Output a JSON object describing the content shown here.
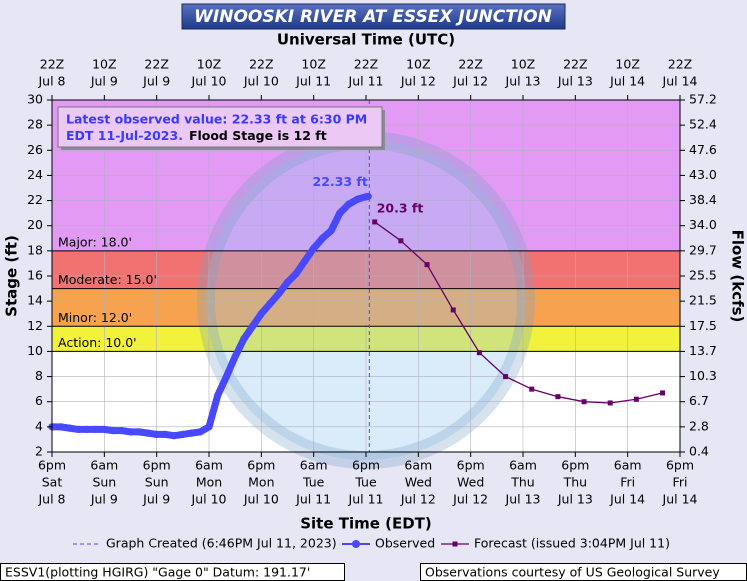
{
  "chart_data": {
    "type": "line",
    "title": "WINOOSKI RIVER AT ESSEX JUNCTION",
    "top_axis_label": "Universal Time (UTC)",
    "x_label": "Site Time (EDT)",
    "y_label": "Stage (ft)",
    "y2_label": "Flow (kcfs)",
    "xlim": [
      "07-08T18:00",
      "07-14T18:00"
    ],
    "xticks": [
      {
        "value": "07-08T18:00",
        "label": [
          "6pm",
          "Sat",
          "Jul 8"
        ]
      },
      {
        "value": "07-09T06:00",
        "label": [
          "6am",
          "Sun",
          "Jul 9"
        ]
      },
      {
        "value": "07-09T18:00",
        "label": [
          "6pm",
          "Sun",
          "Jul 9"
        ]
      },
      {
        "value": "07-10T06:00",
        "label": [
          "6am",
          "Mon",
          "Jul 10"
        ]
      },
      {
        "value": "07-10T18:00",
        "label": [
          "6pm",
          "Mon",
          "Jul 10"
        ]
      },
      {
        "value": "07-11T06:00",
        "label": [
          "6am",
          "Tue",
          "Jul 11"
        ]
      },
      {
        "value": "07-11T18:00",
        "label": [
          "6pm",
          "Tue",
          "Jul 11"
        ]
      },
      {
        "value": "07-12T06:00",
        "label": [
          "6am",
          "Wed",
          "Jul 12"
        ]
      },
      {
        "value": "07-12T18:00",
        "label": [
          "6pm",
          "Wed",
          "Jul 12"
        ]
      },
      {
        "value": "07-13T06:00",
        "label": [
          "6am",
          "Thu",
          "Jul 13"
        ]
      },
      {
        "value": "07-13T18:00",
        "label": [
          "6pm",
          "Thu",
          "Jul 13"
        ]
      },
      {
        "value": "07-14T06:00",
        "label": [
          "6am",
          "Fri",
          "Jul 14"
        ]
      },
      {
        "value": "07-14T18:00",
        "label": [
          "6pm",
          "Fri",
          "Jul 14"
        ]
      }
    ],
    "xticks_top": [
      {
        "value": "07-08T18:00",
        "label": [
          "22Z",
          "Jul 8"
        ]
      },
      {
        "value": "07-09T06:00",
        "label": [
          "10Z",
          "Jul 9"
        ]
      },
      {
        "value": "07-09T18:00",
        "label": [
          "22Z",
          "Jul 9"
        ]
      },
      {
        "value": "07-10T06:00",
        "label": [
          "10Z",
          "Jul 10"
        ]
      },
      {
        "value": "07-10T18:00",
        "label": [
          "22Z",
          "Jul 10"
        ]
      },
      {
        "value": "07-11T06:00",
        "label": [
          "10Z",
          "Jul 11"
        ]
      },
      {
        "value": "07-11T18:00",
        "label": [
          "22Z",
          "Jul 11"
        ]
      },
      {
        "value": "07-12T06:00",
        "label": [
          "10Z",
          "Jul 12"
        ]
      },
      {
        "value": "07-12T18:00",
        "label": [
          "22Z",
          "Jul 12"
        ]
      },
      {
        "value": "07-13T06:00",
        "label": [
          "10Z",
          "Jul 13"
        ]
      },
      {
        "value": "07-13T18:00",
        "label": [
          "22Z",
          "Jul 13"
        ]
      },
      {
        "value": "07-14T06:00",
        "label": [
          "10Z",
          "Jul 14"
        ]
      },
      {
        "value": "07-14T18:00",
        "label": [
          "22Z",
          "Jul 14"
        ]
      }
    ],
    "ylim": [
      2,
      30
    ],
    "yticks": [
      2,
      4,
      6,
      8,
      10,
      12,
      14,
      16,
      18,
      20,
      22,
      24,
      26,
      28,
      30
    ],
    "y2ticks": [
      0.4,
      2.8,
      6.7,
      10.3,
      13.7,
      17.5,
      21.5,
      25.5,
      29.7,
      {
        "value": 34,
        "label": "34.0"
      },
      38.4,
      {
        "value": 43,
        "label": "43.0"
      },
      47.6,
      52.4,
      57.2
    ],
    "grid": true,
    "flood_categories": [
      {
        "label": "Action: 10.0'",
        "value": 10,
        "color": "#f2f23c"
      },
      {
        "label": "Minor: 12.0'",
        "value": 12,
        "color": "#f6a24e"
      },
      {
        "label": "Moderate: 15.0'",
        "value": 15,
        "color": "#f27272"
      },
      {
        "label": "Major: 18.0'",
        "value": 18,
        "color": "#e29af4"
      }
    ],
    "annotation": {
      "line1": "Latest observed value: 22.33 ft at 6:30 PM",
      "line2": "EDT 11-Jul-2023.",
      "line2b": "Flood Stage is 12 ft"
    },
    "created": {
      "name": "Graph Created (6:46PM Jul 11, 2023)",
      "x": "07-11T18:46",
      "color": "#4848ff"
    },
    "series": [
      {
        "name": "Observed",
        "color": "#4848ff",
        "last_label": "22.33 ft",
        "x": [
          "07-08T18:00",
          "07-08T20:00",
          "07-08T22:00",
          "07-09T00:00",
          "07-09T02:00",
          "07-09T04:00",
          "07-09T06:00",
          "07-09T08:00",
          "07-09T10:00",
          "07-09T12:00",
          "07-09T14:00",
          "07-09T16:00",
          "07-09T18:00",
          "07-09T20:00",
          "07-09T22:00",
          "07-10T00:00",
          "07-10T02:00",
          "07-10T04:00",
          "07-10T06:00",
          "07-10T08:00",
          "07-10T10:00",
          "07-10T12:00",
          "07-10T14:00",
          "07-10T16:00",
          "07-10T18:00",
          "07-10T20:00",
          "07-10T22:00",
          "07-11T00:00",
          "07-11T02:00",
          "07-11T04:00",
          "07-11T06:00",
          "07-11T08:00",
          "07-11T10:00",
          "07-11T12:00",
          "07-11T14:00",
          "07-11T16:00",
          "07-11T18:00",
          "07-11T18:30"
        ],
        "values": [
          4.0,
          4.0,
          3.9,
          3.8,
          3.8,
          3.8,
          3.8,
          3.7,
          3.7,
          3.6,
          3.6,
          3.5,
          3.4,
          3.4,
          3.3,
          3.4,
          3.5,
          3.6,
          4.0,
          6.5,
          8.0,
          9.6,
          11.0,
          12.0,
          13.0,
          13.8,
          14.6,
          15.5,
          16.2,
          17.2,
          18.2,
          19.0,
          19.6,
          21.0,
          21.7,
          22.1,
          22.3,
          22.33
        ]
      },
      {
        "name": "Forecast (issued 3:04PM Jul 11)",
        "color": "#660066",
        "first_label": "20.3 ft",
        "x": [
          "07-11T20:00",
          "07-12T02:00",
          "07-12T08:00",
          "07-12T14:00",
          "07-12T20:00",
          "07-13T02:00",
          "07-13T08:00",
          "07-13T14:00",
          "07-13T20:00",
          "07-14T02:00",
          "07-14T08:00",
          "07-14T14:00"
        ],
        "values": [
          20.3,
          18.8,
          16.9,
          13.3,
          9.9,
          8.0,
          7.0,
          6.4,
          6.0,
          5.9,
          6.2,
          6.7
        ]
      }
    ],
    "footer_left": "ESSV1(plotting HGIRG) \"Gage 0\" Datum: 191.17'",
    "footer_right": "Observations courtesy of US Geological Survey"
  }
}
